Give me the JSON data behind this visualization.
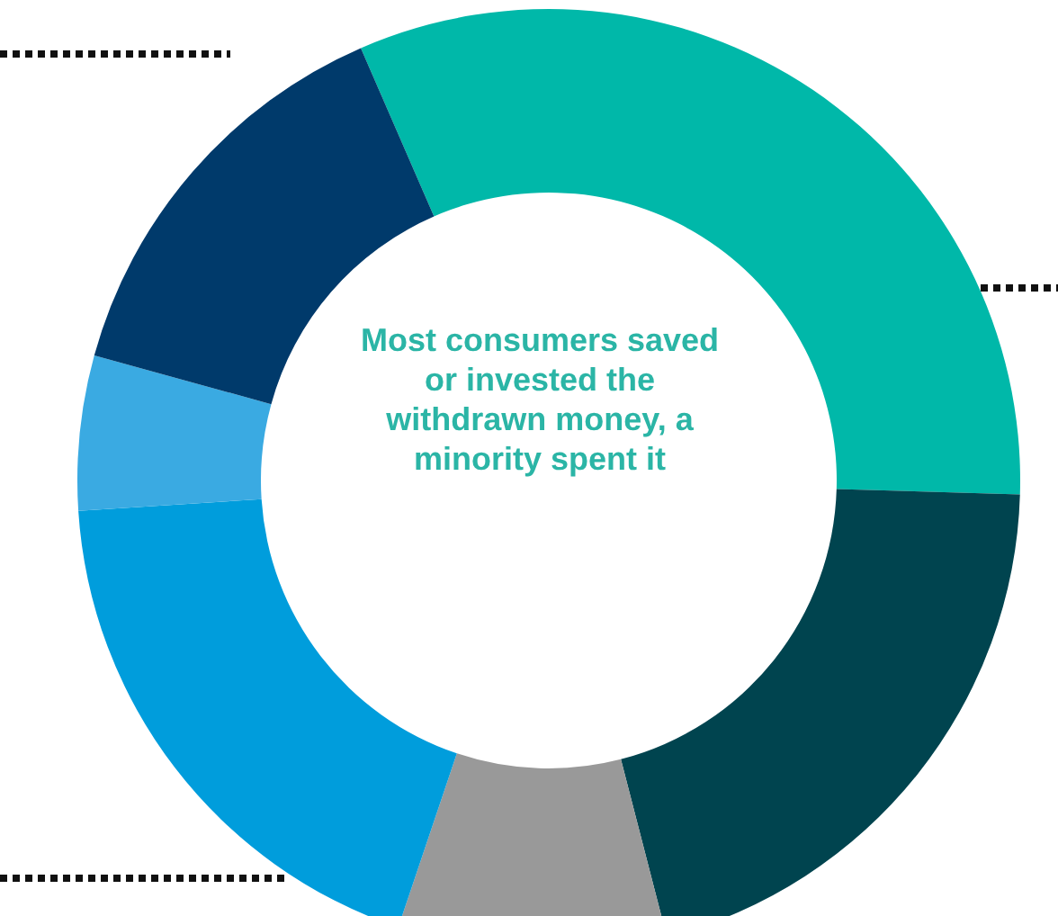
{
  "chart_data": {
    "type": "donut",
    "title": "Most consumers saved or invested the withdrawn money, a minority spent it",
    "categories": [
      null,
      null,
      null,
      null,
      null,
      null
    ],
    "values": [
      32,
      20.5,
      9.2,
      18.8,
      5.3,
      14.2
    ],
    "colors": [
      "#00b8a9",
      "#00444f",
      "#999999",
      "#009ddc",
      "#3aaae2",
      "#003a6b"
    ]
  }
}
